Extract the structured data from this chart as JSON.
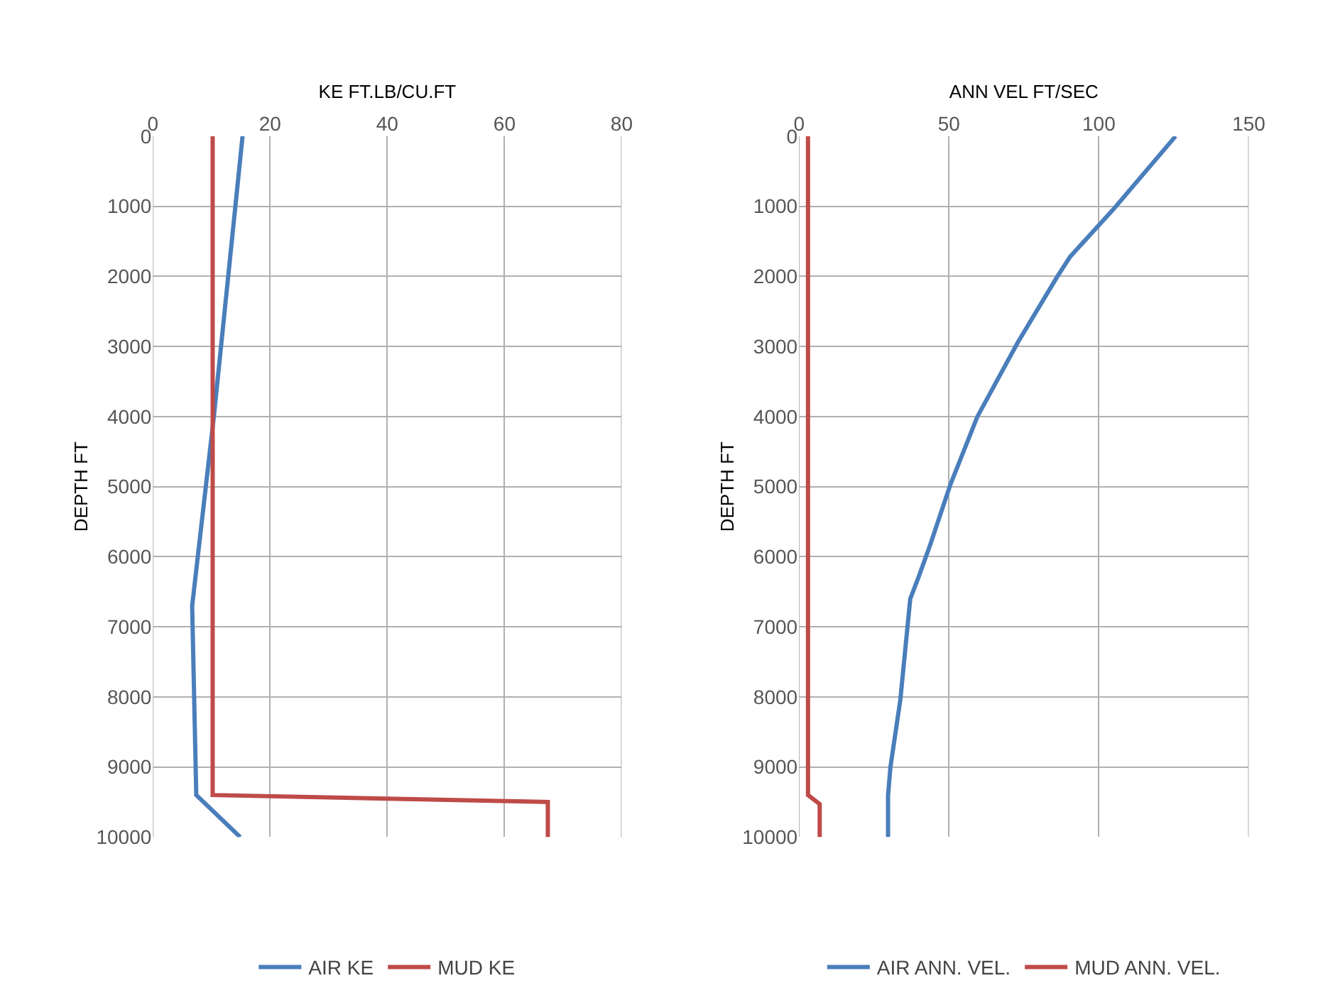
{
  "chart_data": [
    {
      "type": "line",
      "xlabel": "KE FT.LB/CU.FT",
      "ylabel": "DEPTH FT",
      "xlim": [
        0,
        80
      ],
      "xticks": [
        0,
        20,
        40,
        60,
        80
      ],
      "ylim": [
        10000,
        0
      ],
      "yticks": [
        0,
        1000,
        2000,
        3000,
        4000,
        5000,
        6000,
        7000,
        8000,
        9000,
        10000
      ],
      "grid": true,
      "legend": "bottom",
      "marker": "none",
      "line_style": "solid",
      "series": [
        {
          "name": "AIR KE",
          "color": "#4a7ebb",
          "x": [
            15.3,
            10.4,
            6.7,
            7.4,
            14.9
          ],
          "values": [
            0,
            4000,
            6700,
            9400,
            10000
          ]
        },
        {
          "name": "MUD KE",
          "color": "#be4b48",
          "x": [
            10.2,
            10.2,
            67.4,
            67.4
          ],
          "values": [
            0,
            9400,
            9500,
            10000
          ]
        }
      ]
    },
    {
      "type": "line",
      "xlabel": "ANN VEL FT/SEC",
      "ylabel": "DEPTH FT",
      "xlim": [
        0,
        150
      ],
      "xticks": [
        0,
        50,
        100,
        150
      ],
      "ylim": [
        10000,
        0
      ],
      "yticks": [
        0,
        1000,
        2000,
        3000,
        4000,
        5000,
        6000,
        7000,
        8000,
        9000,
        10000
      ],
      "grid": true,
      "legend": "bottom",
      "marker": "none",
      "line_style": "solid",
      "series": [
        {
          "name": "AIR ANN. VEL.",
          "color": "#4a7ebb",
          "x": [
            125.6,
            104.7,
            90.4,
            85.9,
            73.0,
            59.5,
            50.4,
            43.6,
            39.8,
            37.1,
            33.8,
            30.5,
            29.7,
            29.7
          ],
          "values": [
            0,
            1050,
            1720,
            2020,
            2940,
            4000,
            4980,
            5850,
            6300,
            6600,
            8040,
            9000,
            9400,
            10000
          ]
        },
        {
          "name": "MUD ANN. VEL.",
          "color": "#be4b48",
          "x": [
            3.0,
            3.0,
            6.9,
            6.9
          ],
          "values": [
            0,
            9400,
            9530,
            10000
          ]
        }
      ]
    }
  ]
}
